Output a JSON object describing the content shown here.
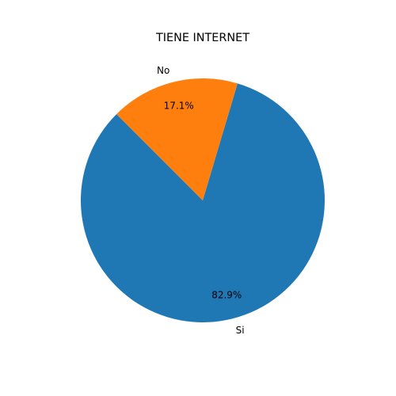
{
  "chart_data": {
    "type": "pie",
    "title": "TIENE INTERNET",
    "slices": [
      {
        "label": "Si",
        "value": 82.9,
        "pct_label": "82.9%",
        "color": "#1f77b4"
      },
      {
        "label": "No",
        "value": 17.1,
        "pct_label": "17.1%",
        "color": "#ff7f0e"
      }
    ],
    "start_angle_deg": 135,
    "direction": "counterclockwise",
    "legend": "none"
  }
}
